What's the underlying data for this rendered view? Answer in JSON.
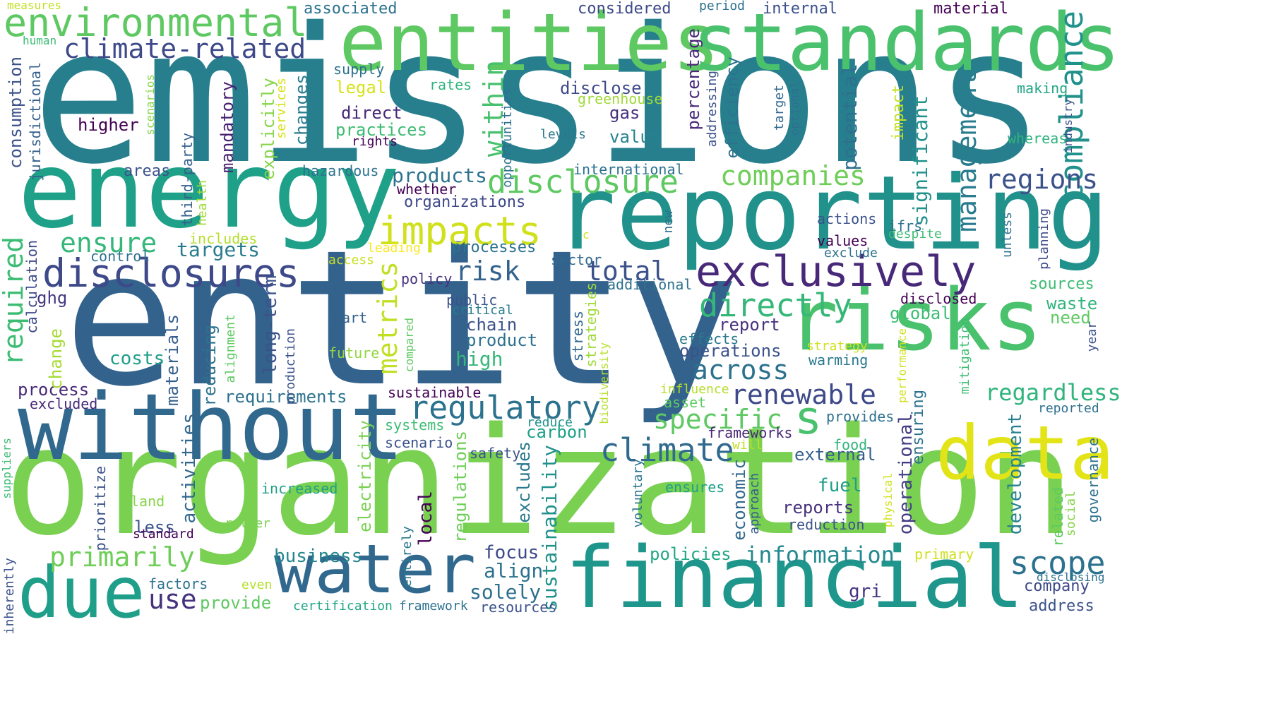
{
  "words": [
    {
      "text": "emissions",
      "color": "#277f8e"
    },
    {
      "text": "entity",
      "color": "#33638d"
    },
    {
      "text": "organization",
      "color": "#7ad151"
    },
    {
      "text": "reporting",
      "color": "#21918c"
    },
    {
      "text": "energy",
      "color": "#1fa088"
    },
    {
      "text": "entities",
      "color": "#5ec962"
    },
    {
      "text": "standards",
      "color": "#4ac16d"
    },
    {
      "text": "without",
      "color": "#31688e"
    },
    {
      "text": "risks",
      "color": "#4ac16d"
    },
    {
      "text": "financial",
      "color": "#1f968b"
    },
    {
      "text": "water",
      "color": "#31688e"
    },
    {
      "text": "data",
      "color": "#e2e418"
    },
    {
      "text": "exclusively",
      "color": "#482878"
    },
    {
      "text": "due",
      "color": "#1f9e89"
    },
    {
      "text": "environmental",
      "color": "#5ec962"
    },
    {
      "text": "disclosures",
      "color": "#3e4989"
    },
    {
      "text": "impacts",
      "color": "#d0e11c"
    },
    {
      "text": "disclosure",
      "color": "#5ec962"
    },
    {
      "text": "climate-related",
      "color": "#3e4989"
    },
    {
      "text": "regulatory",
      "color": "#2c728e"
    },
    {
      "text": "companies",
      "color": "#6ece58"
    },
    {
      "text": "climate",
      "color": "#306a8e"
    },
    {
      "text": "directly",
      "color": "#35b779"
    },
    {
      "text": "renewable",
      "color": "#3e4989"
    },
    {
      "text": "across",
      "color": "#2c728e"
    },
    {
      "text": "scope",
      "color": "#2c728e"
    },
    {
      "text": "management",
      "color": "#287c8e"
    },
    {
      "text": "compliance",
      "color": "#21918c"
    },
    {
      "text": "regions",
      "color": "#3b528b"
    },
    {
      "text": "specific",
      "color": "#5ec962"
    },
    {
      "text": "primarily",
      "color": "#6ece58"
    },
    {
      "text": "metrics",
      "color": "#c2df23"
    },
    {
      "text": "required",
      "color": "#3dbc74"
    },
    {
      "text": "within",
      "color": "#48c16e"
    },
    {
      "text": "regardless",
      "color": "#2fb47c"
    },
    {
      "text": "information",
      "color": "#23898e"
    },
    {
      "text": "ensure",
      "color": "#35b779"
    },
    {
      "text": "total",
      "color": "#3b528b"
    },
    {
      "text": "risk",
      "color": "#33638d"
    },
    {
      "text": "s",
      "color": "#4ac16d"
    },
    {
      "text": "use",
      "color": "#46327e"
    },
    {
      "text": "targets",
      "color": "#287c8e"
    },
    {
      "text": "products",
      "color": "#2c728e"
    },
    {
      "text": "high",
      "color": "#35b779"
    },
    {
      "text": "align",
      "color": "#2c728e"
    },
    {
      "text": "business",
      "color": "#25858e"
    },
    {
      "text": "costs",
      "color": "#1f9e89"
    },
    {
      "text": "focus",
      "color": "#3e4989"
    },
    {
      "text": "solely",
      "color": "#2d708e"
    },
    {
      "text": "sustainability",
      "color": "#20928c"
    },
    {
      "text": "potential",
      "color": "#2d708e"
    },
    {
      "text": "significant",
      "color": "#21918c"
    },
    {
      "text": "operational",
      "color": "#433e85"
    },
    {
      "text": "development",
      "color": "#26828e"
    },
    {
      "text": "regulations",
      "color": "#6ece58"
    },
    {
      "text": "activities",
      "color": "#31688e"
    },
    {
      "text": "process",
      "color": "#482878"
    },
    {
      "text": "long-term",
      "color": "#3b528b"
    },
    {
      "text": "reducing",
      "color": "#2c728e"
    },
    {
      "text": "requirements",
      "color": "#2c728e"
    },
    {
      "text": "mandatory",
      "color": "#481f70"
    },
    {
      "text": "explicitly",
      "color": "#86d549"
    },
    {
      "text": "changes",
      "color": "#287c8e"
    },
    {
      "text": "percentage",
      "color": "#482878"
    },
    {
      "text": "efficiency",
      "color": "#2c728e"
    },
    {
      "text": "practices",
      "color": "#3dbc74"
    },
    {
      "text": "direct",
      "color": "#482878"
    },
    {
      "text": "gas",
      "color": "#46327e"
    },
    {
      "text": "value",
      "color": "#26828e"
    },
    {
      "text": "disclose",
      "color": "#3e4989"
    },
    {
      "text": "fuel",
      "color": "#1fa088"
    },
    {
      "text": "reports",
      "color": "#46327e"
    },
    {
      "text": "local",
      "color": "#440154"
    },
    {
      "text": "excludes",
      "color": "#2a788e"
    },
    {
      "text": "economic",
      "color": "#31688e"
    },
    {
      "text": "external",
      "color": "#355f8d"
    },
    {
      "text": "policies",
      "color": "#22a785"
    },
    {
      "text": "provide",
      "color": "#5ec962"
    },
    {
      "text": "less",
      "color": "#3b528b"
    },
    {
      "text": "materials",
      "color": "#355f8d"
    },
    {
      "text": "chain",
      "color": "#3b528b"
    },
    {
      "text": "product",
      "color": "#2c728e"
    },
    {
      "text": "report",
      "color": "#46327e"
    },
    {
      "text": "operations",
      "color": "#3b528b"
    },
    {
      "text": "waste",
      "color": "#2fb47c"
    },
    {
      "text": "global",
      "color": "#3dbc74"
    },
    {
      "text": "need",
      "color": "#5ec962"
    },
    {
      "text": "company",
      "color": "#3e4989"
    },
    {
      "text": "address",
      "color": "#3b528b"
    },
    {
      "text": "gri",
      "color": "#453581"
    },
    {
      "text": "electricity",
      "color": "#7ad151"
    },
    {
      "text": "carbon",
      "color": "#1fa088"
    },
    {
      "text": "change",
      "color": "#a5db36"
    },
    {
      "text": "ghg",
      "color": "#453781"
    },
    {
      "text": "consumption",
      "color": "#3b528b"
    },
    {
      "text": "jurisdictional",
      "color": "#355f8d"
    },
    {
      "text": "higher",
      "color": "#440154"
    },
    {
      "text": "areas",
      "color": "#3b528b"
    },
    {
      "text": "third-party",
      "color": "#355f8d"
    },
    {
      "text": "health",
      "color": "#a0da39"
    },
    {
      "text": "includes",
      "color": "#b5de2b"
    },
    {
      "text": "calculation",
      "color": "#3e4989"
    },
    {
      "text": "control",
      "color": "#2d708e"
    },
    {
      "text": "supply",
      "color": "#2d708e"
    },
    {
      "text": "legal",
      "color": "#d8e219"
    },
    {
      "text": "rates",
      "color": "#2fb47c"
    },
    {
      "text": "greenhouse",
      "color": "#a0da39"
    },
    {
      "text": "levels",
      "color": "#2a788e"
    },
    {
      "text": "rights",
      "color": "#440154"
    },
    {
      "text": "hazardous",
      "color": "#2c728e"
    },
    {
      "text": "whether",
      "color": "#440154"
    },
    {
      "text": "organizations",
      "color": "#3e4989"
    },
    {
      "text": "processes",
      "color": "#2c728e"
    },
    {
      "text": "sector",
      "color": "#31688e"
    },
    {
      "text": "access",
      "color": "#c8e020"
    },
    {
      "text": "leading",
      "color": "#fde725"
    },
    {
      "text": "international",
      "color": "#2c728e"
    },
    {
      "text": "additional",
      "color": "#2c728e"
    },
    {
      "text": "policy",
      "color": "#46327e"
    },
    {
      "text": "public",
      "color": "#3b528b"
    },
    {
      "text": "critical",
      "color": "#287c8e"
    },
    {
      "text": "part",
      "color": "#355f8d"
    },
    {
      "text": "future",
      "color": "#93d741"
    },
    {
      "text": "compared",
      "color": "#5ec962"
    },
    {
      "text": "stress",
      "color": "#31688e"
    },
    {
      "text": "strategies",
      "color": "#a0da39"
    },
    {
      "text": "biodiversity",
      "color": "#b5de2b"
    },
    {
      "text": "effects",
      "color": "#2a788e"
    },
    {
      "text": "warming",
      "color": "#2a788e"
    },
    {
      "text": "strategy",
      "color": "#d0e11c"
    },
    {
      "text": "sustainable",
      "color": "#440154"
    },
    {
      "text": "systems",
      "color": "#3dbc74"
    },
    {
      "text": "scenario",
      "color": "#3b528b"
    },
    {
      "text": "reduce",
      "color": "#20928c"
    },
    {
      "text": "safety",
      "color": "#3b528b"
    },
    {
      "text": "asset",
      "color": "#5ec962"
    },
    {
      "text": "influence",
      "color": "#b5de2b"
    },
    {
      "text": "frameworks",
      "color": "#482878"
    },
    {
      "text": "will",
      "color": "#c2df23"
    },
    {
      "text": "provides",
      "color": "#2d708e"
    },
    {
      "text": "food",
      "color": "#2fb47c"
    },
    {
      "text": "voluntary",
      "color": "#2c728e"
    },
    {
      "text": "approach",
      "color": "#355f8d"
    },
    {
      "text": "ensures",
      "color": "#1fa088"
    },
    {
      "text": "reduction",
      "color": "#3b528b"
    },
    {
      "text": "increased",
      "color": "#1fa088"
    },
    {
      "text": "land",
      "color": "#86d549"
    },
    {
      "text": "rather",
      "color": "#7ad151"
    },
    {
      "text": "entirely",
      "color": "#2a788e"
    },
    {
      "text": "standard",
      "color": "#440154"
    },
    {
      "text": "prioritize",
      "color": "#3b528b"
    },
    {
      "text": "factors",
      "color": "#2c728e"
    },
    {
      "text": "even",
      "color": "#b5de2b"
    },
    {
      "text": "certification",
      "color": "#22a785"
    },
    {
      "text": "framework",
      "color": "#2c728e"
    },
    {
      "text": "resources",
      "color": "#3b528b"
    },
    {
      "text": "primary",
      "color": "#d0e11c"
    },
    {
      "text": "disclosing",
      "color": "#2d708e"
    },
    {
      "text": "inherently",
      "color": "#3b528b"
    },
    {
      "text": "suppliers",
      "color": "#3dbc74"
    },
    {
      "text": "excluded",
      "color": "#482878"
    },
    {
      "text": "measures",
      "color": "#c2df23"
    },
    {
      "text": "human",
      "color": "#3dbc74"
    },
    {
      "text": "associated",
      "color": "#2c728e"
    },
    {
      "text": "considered",
      "color": "#3e4989"
    },
    {
      "text": "period",
      "color": "#2c728e"
    },
    {
      "text": "internal",
      "color": "#3b528b"
    },
    {
      "text": "material",
      "color": "#440154"
    },
    {
      "text": "making",
      "color": "#22a785"
    },
    {
      "text": "whereas",
      "color": "#2fb47c"
    },
    {
      "text": "industry",
      "color": "#3b528b"
    },
    {
      "text": "opportunities",
      "color": "#2d708e"
    },
    {
      "text": "services",
      "color": "#d8e219"
    },
    {
      "text": "scenarios",
      "color": "#86d549"
    },
    {
      "text": "addressing",
      "color": "#3b528b"
    },
    {
      "text": "target",
      "color": "#31688e"
    },
    {
      "text": "optional",
      "color": "#2d708e"
    },
    {
      "text": "impact",
      "color": "#c2df23"
    },
    {
      "text": "actions",
      "color": "#3b528b"
    },
    {
      "text": "ifrs",
      "color": "#2c728e"
    },
    {
      "text": "despite",
      "color": "#3dbc74"
    },
    {
      "text": "unless",
      "color": "#2c728e"
    },
    {
      "text": "planning",
      "color": "#3e4989"
    },
    {
      "text": "values",
      "color": "#440154"
    },
    {
      "text": "exclude",
      "color": "#2d708e"
    },
    {
      "text": "new",
      "color": "#2d708e"
    },
    {
      "text": "c",
      "color": "#d0e11c"
    },
    {
      "text": "sources",
      "color": "#3dbc74"
    },
    {
      "text": "disclosed",
      "color": "#440154"
    },
    {
      "text": "year",
      "color": "#3b528b"
    },
    {
      "text": "mitigation",
      "color": "#3dbc74"
    },
    {
      "text": "performance",
      "color": "#d0e11c"
    },
    {
      "text": "ensuring",
      "color": "#2c728e"
    },
    {
      "text": "reported",
      "color": "#2d708e"
    },
    {
      "text": "alignment",
      "color": "#5ec962"
    },
    {
      "text": "production",
      "color": "#3b528b"
    },
    {
      "text": "physical",
      "color": "#d0e11c"
    },
    {
      "text": "related",
      "color": "#5ec962"
    },
    {
      "text": "social",
      "color": "#86d549"
    },
    {
      "text": "governance",
      "color": "#2c728e"
    }
  ]
}
